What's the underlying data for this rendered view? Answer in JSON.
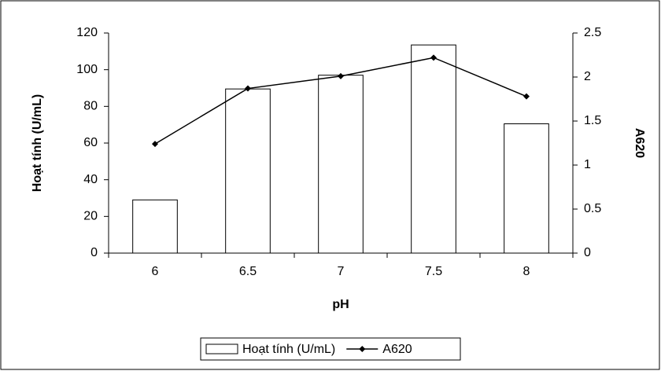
{
  "chart_data": {
    "type": "bar",
    "x_label": "pH",
    "y_label": "Hoạt tính (U/mL)",
    "y2_label": "A620",
    "categories": [
      "6",
      "6.5",
      "7",
      "7.5",
      "8"
    ],
    "series": [
      {
        "name": "Hoạt tính (U/mL)",
        "type": "bar",
        "color": "#ffffff",
        "values": [
          29,
          89.5,
          97,
          113.5,
          70.5
        ]
      },
      {
        "name": "A620",
        "type": "line",
        "axis": "y2",
        "color": "#000000",
        "values": [
          1.24,
          1.87,
          2.01,
          2.22,
          1.78
        ]
      }
    ],
    "ylim": [
      0,
      120
    ],
    "yticks": [
      0,
      20,
      40,
      60,
      80,
      100,
      120
    ],
    "y2lim": [
      0,
      2.5
    ],
    "y2ticks": [
      0,
      0.5,
      1,
      1.5,
      2,
      2.5
    ],
    "grid": false,
    "legend": "bottom"
  }
}
